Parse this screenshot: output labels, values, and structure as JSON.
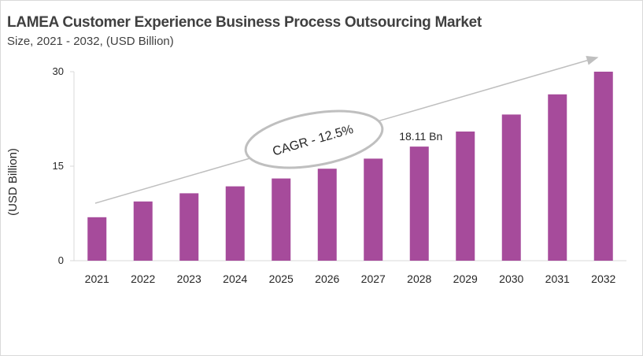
{
  "chart_data": {
    "type": "bar",
    "title": "LAMEA Customer Experience Business Process Outsourcing Market",
    "subtitle": "Size, 2021 - 2032, (USD Billion)",
    "xlabel": "",
    "ylabel": "(USD Billion)",
    "ylim": [
      0,
      30
    ],
    "yticks": [
      0,
      15,
      30
    ],
    "grid": false,
    "categories": [
      "2021",
      "2022",
      "2023",
      "2024",
      "2025",
      "2026",
      "2027",
      "2028",
      "2029",
      "2030",
      "2031",
      "2032"
    ],
    "values": [
      6.9,
      9.4,
      10.7,
      11.8,
      13.05,
      14.6,
      16.2,
      18.11,
      20.5,
      23.2,
      26.4,
      30.0
    ],
    "bar_color": "#a64b9b",
    "annotations": [
      {
        "text": "18.11 Bn",
        "category": "2028"
      },
      {
        "text": "CAGR - 12.5%"
      }
    ]
  }
}
